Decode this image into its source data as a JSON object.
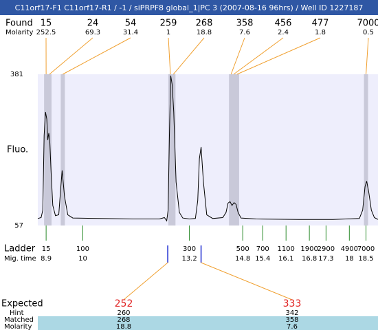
{
  "chart_data": {
    "type": "electropherogram",
    "title": "C11orf17-F1  C11orf17-R1 / -1 / siPRPF8 global_1|PC 3 (2007-08-16 96hrs) / Well ID 1227187",
    "y_label": "Fluo.",
    "xlim": [
      8.65,
      18.86
    ],
    "ylim": [
      57,
      381
    ],
    "yticks": [
      57,
      381
    ],
    "found": {
      "label": "Found",
      "molarity_label": "Molarity",
      "sizes": [
        15,
        24,
        54,
        259,
        268,
        358,
        456,
        477,
        7000
      ],
      "molarities": [
        252.5,
        69.3,
        31.4,
        1,
        18.8,
        7.6,
        2.4,
        1.8,
        0.5
      ],
      "times": [
        8.9,
        9.0,
        9.4,
        12.63,
        12.72,
        14.45,
        14.53,
        14.63,
        18.5
      ]
    },
    "ladder": {
      "label": "Ladder",
      "time_label": "Mig. time",
      "sizes": [
        15,
        100,
        300,
        500,
        700,
        1100,
        1900,
        2900,
        4900,
        7000
      ],
      "times": [
        8.9,
        10,
        13.2,
        14.8,
        15.4,
        16.1,
        16.8,
        17.3,
        18,
        18.5
      ]
    },
    "expected": {
      "label": "Expected",
      "hint_label": "Hint",
      "matched_label": "Matched",
      "molarity_label": "Molarity",
      "sizes": [
        252,
        333
      ],
      "hint": [
        260,
        342
      ],
      "matched": [
        268,
        358
      ],
      "molarity": [
        18.8,
        7.6
      ],
      "times": [
        12.55,
        13.55
      ]
    },
    "trace": {
      "x": [
        8.65,
        8.75,
        8.8,
        8.84,
        8.88,
        8.92,
        8.95,
        8.98,
        9.01,
        9.05,
        9.1,
        9.18,
        9.28,
        9.34,
        9.38,
        9.45,
        9.55,
        9.7,
        10.5,
        11.5,
        12.3,
        12.45,
        12.52,
        12.56,
        12.6,
        12.64,
        12.68,
        12.73,
        12.8,
        12.9,
        13.0,
        13.2,
        13.38,
        13.45,
        13.5,
        13.55,
        13.62,
        13.72,
        13.9,
        14.2,
        14.3,
        14.36,
        14.42,
        14.48,
        14.54,
        14.6,
        14.66,
        14.75,
        15.2,
        16.5,
        17.5,
        18.3,
        18.4,
        18.47,
        18.52,
        18.58,
        18.66,
        18.75,
        18.86
      ],
      "y": [
        72,
        74,
        90,
        250,
        300,
        285,
        240,
        255,
        235,
        170,
        100,
        78,
        80,
        140,
        175,
        120,
        80,
        73,
        72,
        71,
        71,
        74,
        67,
        90,
        250,
        378,
        360,
        300,
        150,
        85,
        73,
        71,
        72,
        110,
        200,
        225,
        150,
        80,
        72,
        74,
        85,
        105,
        108,
        100,
        106,
        102,
        85,
        73,
        71,
        70,
        70,
        72,
        90,
        140,
        152,
        130,
        90,
        74,
        70
      ]
    }
  }
}
